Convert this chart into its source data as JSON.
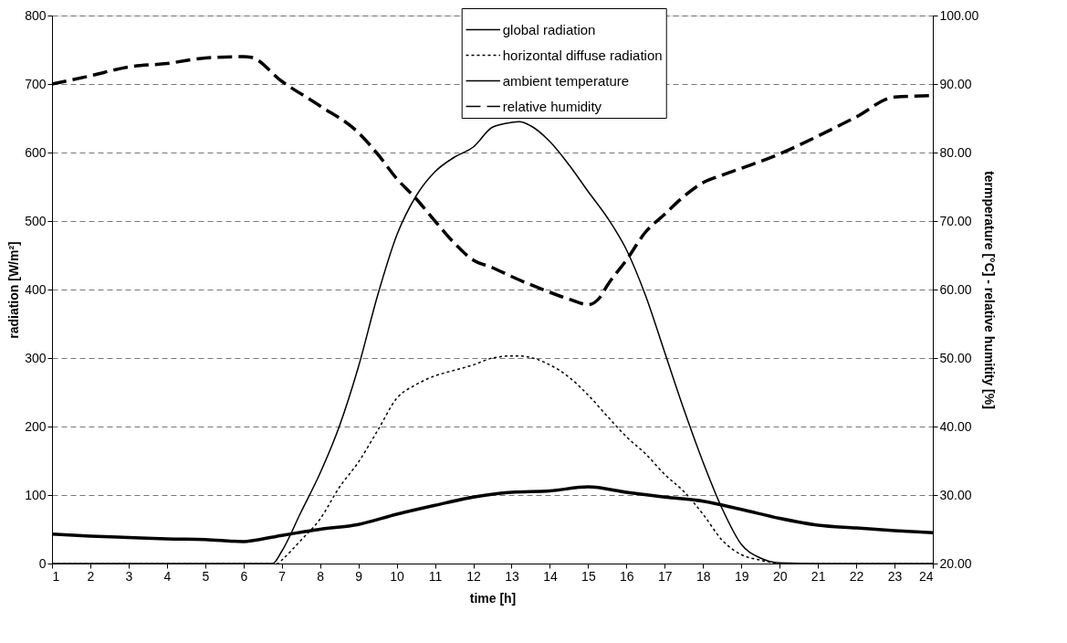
{
  "chart_data": {
    "type": "line",
    "xlabel": "time [h]",
    "ylabel": "radiation [W/m²]",
    "y2label": "termperature [°C] - relative humitity [%]",
    "xlim": [
      1,
      24
    ],
    "xticks": [
      1,
      2,
      3,
      4,
      5,
      6,
      7,
      8,
      9,
      10,
      11,
      12,
      13,
      14,
      15,
      16,
      17,
      18,
      19,
      20,
      21,
      22,
      23,
      24
    ],
    "ylim": [
      0,
      800
    ],
    "yticks": [
      0,
      100,
      200,
      300,
      400,
      500,
      600,
      700,
      800
    ],
    "y2lim": [
      20,
      100
    ],
    "y2ticks": [
      {
        "value": 20,
        "label": "20.00"
      },
      {
        "value": 30,
        "label": "30.00"
      },
      {
        "value": 40,
        "label": "40.00"
      },
      {
        "value": 50,
        "label": "50.00"
      },
      {
        "value": 60,
        "label": "60.00"
      },
      {
        "value": 70,
        "label": "70.00"
      },
      {
        "value": 80,
        "label": "80.00"
      },
      {
        "value": 90,
        "label": "90.00"
      },
      {
        "value": 100,
        "label": "100.00"
      }
    ],
    "grid": "y",
    "legend": "top",
    "series": [
      {
        "name": "global radiation",
        "color": "#000000",
        "line_style": "solid",
        "x": [
          1,
          2,
          3,
          4,
          5,
          6,
          6.76,
          7,
          7.5,
          8,
          8.5,
          9,
          9.5,
          10,
          10.5,
          11,
          11.5,
          12,
          12.5,
          13,
          13.2,
          13.5,
          14,
          14.5,
          15,
          15.5,
          16,
          16.5,
          17,
          17.5,
          18,
          18.5,
          19,
          19.5,
          20,
          21,
          22,
          23,
          24
        ],
        "values": [
          0,
          0,
          0,
          0,
          0,
          0,
          0,
          18,
          75,
          132,
          200,
          287,
          391,
          479,
          536,
          572,
          593,
          608,
          637,
          644,
          645,
          639,
          616,
          582,
          543,
          505,
          458,
          391,
          308,
          225,
          148,
          80,
          28,
          8,
          1,
          0,
          0,
          0,
          0
        ]
      },
      {
        "name": "horizontal diffuse radiation",
        "color": "#000000",
        "line_style": "dotted",
        "x": [
          1,
          2,
          3,
          4,
          5,
          6,
          6.9,
          7,
          7.5,
          8,
          8.5,
          9,
          9.5,
          10,
          10.5,
          11,
          11.5,
          12,
          12.5,
          13,
          13.2,
          14,
          14.5,
          15,
          15.5,
          16,
          16.5,
          17,
          17.5,
          18,
          18.5,
          19,
          19.5,
          20,
          21,
          22,
          23,
          24
        ],
        "values": [
          0,
          0,
          0,
          0,
          0,
          0,
          0,
          5,
          34,
          65,
          111,
          148,
          194,
          241,
          261,
          274,
          282,
          290,
          300,
          303,
          303,
          290,
          272,
          246,
          215,
          185,
          160,
          130,
          105,
          72,
          34,
          13,
          5,
          0,
          0,
          0,
          0,
          0
        ]
      },
      {
        "name": "ambient temperature",
        "color": "#000000",
        "line_style": "solid",
        "axis": "y2",
        "x": [
          1,
          2,
          3,
          4,
          5,
          6,
          6.3,
          7,
          8,
          9,
          10,
          11,
          12,
          13,
          14,
          15,
          16,
          17,
          18,
          19,
          20,
          21,
          22,
          23,
          24
        ],
        "values": [
          24.3,
          24.0,
          23.8,
          23.6,
          23.5,
          23.2,
          23.4,
          24.1,
          25.0,
          25.7,
          27.2,
          28.5,
          29.7,
          30.4,
          30.6,
          31.2,
          30.4,
          29.7,
          29.1,
          27.9,
          26.6,
          25.6,
          25.2,
          24.8,
          24.5
        ]
      },
      {
        "name": "relative humidity",
        "color": "#000000",
        "line_style": "dashed",
        "axis": "y2",
        "x": [
          1,
          2,
          3,
          4,
          5,
          6,
          6.2,
          7,
          8,
          9,
          9.5,
          10,
          10.5,
          11,
          11.5,
          12,
          12.5,
          13,
          14,
          14.5,
          15,
          15.3,
          15.5,
          16,
          16.5,
          17,
          17.5,
          18,
          18.5,
          19,
          20,
          21,
          22,
          23,
          24
        ],
        "values": [
          90.0,
          91.2,
          92.5,
          93.0,
          93.8,
          94.0,
          93.9,
          90.4,
          86.8,
          82.9,
          79.8,
          76.2,
          73.3,
          70.0,
          66.8,
          64.3,
          63.2,
          61.9,
          59.6,
          58.6,
          57.8,
          58.8,
          60.6,
          64.3,
          68.4,
          71.0,
          73.6,
          75.6,
          76.7,
          77.7,
          79.8,
          82.4,
          85.2,
          88.1,
          88.3
        ]
      }
    ]
  }
}
